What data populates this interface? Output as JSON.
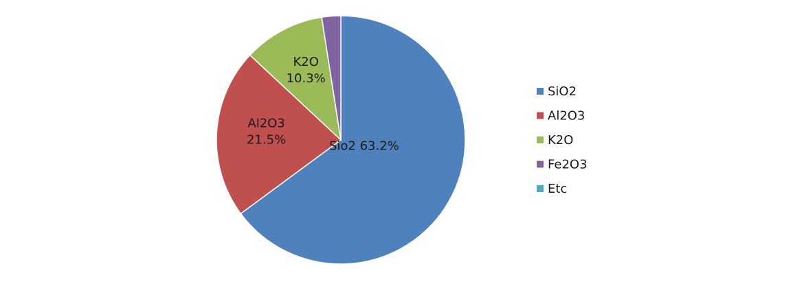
{
  "chart_data": {
    "type": "pie",
    "title": "",
    "slices": [
      {
        "legend": "SiO2",
        "label": "Sio2",
        "pct_text": "63.2%",
        "value": 63.2,
        "color": "#4F81BD"
      },
      {
        "legend": "Al2O3",
        "label": "Al2O3",
        "pct_text": "21.5%",
        "value": 21.5,
        "color": "#C0504D"
      },
      {
        "legend": "K2O",
        "label": "K2O",
        "pct_text": "10.3%",
        "value": 10.3,
        "color": "#9BBB59"
      },
      {
        "legend": "Fe2O3",
        "label": "",
        "pct_text": "",
        "value": 2.4,
        "color": "#8064A2"
      },
      {
        "legend": "Etc",
        "label": "",
        "pct_text": "",
        "value": 0.0,
        "color": "#4BACC6"
      }
    ],
    "start_angle_deg": 0,
    "direction": "clockwise",
    "legend_position": "right",
    "grid": false
  }
}
